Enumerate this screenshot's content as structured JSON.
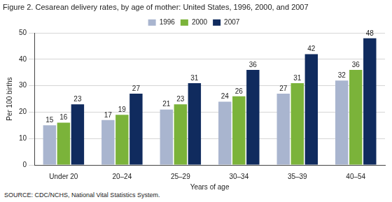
{
  "chart_data": {
    "type": "bar",
    "title": "Figure 2. Cesarean delivery rates, by age of mother: United States, 1996, 2000, and 2007",
    "y_label": "Per 100 births",
    "x_label": "Years of age",
    "source": "SOURCE: CDC/NCHS, National Vital Statistics System.",
    "categories": [
      "Under 20",
      "20–24",
      "25–29",
      "30–34",
      "35–39",
      "40–54"
    ],
    "series": [
      {
        "name": "1996",
        "color": "#a9b5cf",
        "values": [
          15,
          17,
          21,
          24,
          27,
          32
        ]
      },
      {
        "name": "2000",
        "color": "#7bb33a",
        "values": [
          16,
          19,
          23,
          26,
          31,
          36
        ]
      },
      {
        "name": "2007",
        "color": "#102b5e",
        "values": [
          23,
          27,
          31,
          36,
          42,
          48
        ]
      }
    ],
    "ylim": [
      0,
      50
    ],
    "yticks": [
      0,
      10,
      20,
      30,
      40,
      50
    ],
    "grid": true,
    "legend": "top",
    "data_labels": true
  }
}
